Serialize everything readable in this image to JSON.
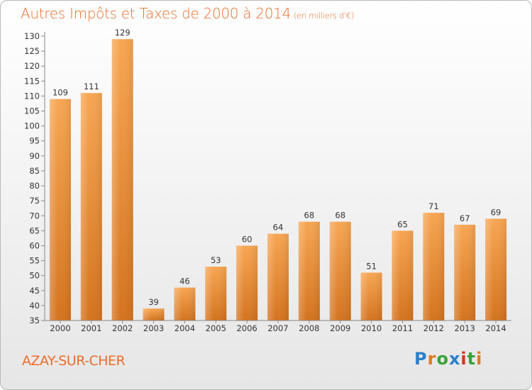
{
  "title": "Autres Impôts et Taxes de 2000 à 2014",
  "unit": "(en milliers d'€)",
  "commune": "AZAY-SUR-CHER",
  "logo": {
    "text": "Proxiti",
    "letters": [
      "P",
      "r",
      "o",
      "x",
      "i",
      "t",
      "i"
    ],
    "colors": [
      "#2c7fc9",
      "#e07a1f",
      "#3aa23a",
      "#2c7fc9",
      "#d8321e",
      "#3aa23a",
      "#e07a1f"
    ]
  },
  "colors": {
    "title": "#ec6d2a",
    "bar_light": "#f7a653",
    "bar_dark": "#d4731e"
  },
  "chart_data": {
    "type": "bar",
    "categories": [
      "2000",
      "2001",
      "2002",
      "2003",
      "2004",
      "2005",
      "2006",
      "2007",
      "2008",
      "2009",
      "2010",
      "2011",
      "2012",
      "2013",
      "2014"
    ],
    "values": [
      109,
      111,
      129,
      39,
      46,
      53,
      60,
      64,
      68,
      68,
      51,
      65,
      71,
      67,
      69
    ],
    "ylim": [
      35,
      130
    ],
    "yticks": [
      35,
      40,
      45,
      50,
      55,
      60,
      65,
      70,
      75,
      80,
      85,
      90,
      95,
      100,
      105,
      110,
      115,
      120,
      125,
      130
    ],
    "grid": false
  }
}
